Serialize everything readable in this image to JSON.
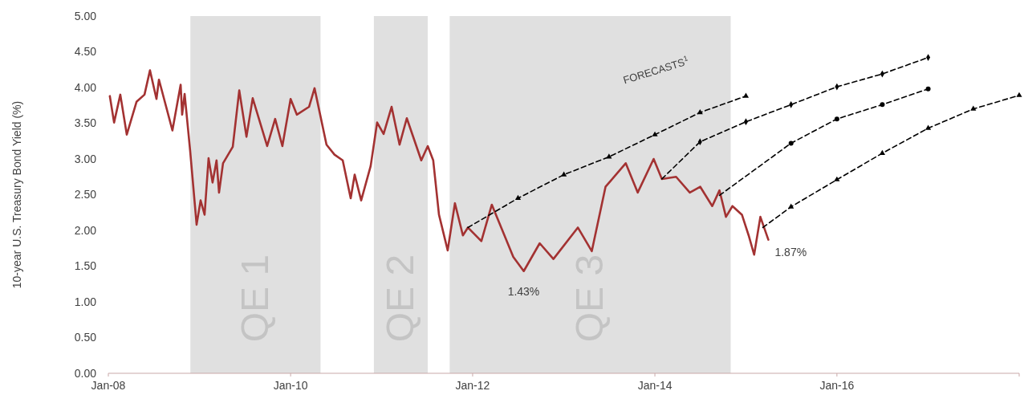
{
  "chart_data": {
    "type": "line",
    "ylabel": "10-year U.S. Treasury Bond Yield (%)",
    "xlim": [
      "2008-01-01",
      "2018-01-01"
    ],
    "xticks": [
      {
        "value": "2008-01-01",
        "label": "Jan-08"
      },
      {
        "value": "2010-01-01",
        "label": "Jan-10"
      },
      {
        "value": "2012-01-01",
        "label": "Jan-12"
      },
      {
        "value": "2014-01-01",
        "label": "Jan-14"
      },
      {
        "value": "2016-01-01",
        "label": "Jan-16"
      },
      {
        "value": "2018-01-01",
        "label": null
      }
    ],
    "ylim": [
      0,
      5
    ],
    "yticks": [
      {
        "value": 0,
        "label": "0.00"
      },
      {
        "value": 0.5,
        "label": "0.50"
      },
      {
        "value": 1,
        "label": "1.00"
      },
      {
        "value": 1.5,
        "label": "1.50"
      },
      {
        "value": 2,
        "label": "2.00"
      },
      {
        "value": 2.5,
        "label": "2.50"
      },
      {
        "value": 3,
        "label": "3.00"
      },
      {
        "value": 3.5,
        "label": "3.50"
      },
      {
        "value": 4,
        "label": "4.00"
      },
      {
        "value": 4.5,
        "label": "4.50"
      },
      {
        "value": 5,
        "label": "5.00"
      }
    ],
    "bands": [
      {
        "axis": "x",
        "from": "2008-11-25",
        "to": "2010-05-01",
        "label": "QE 1",
        "color": "#e0e0e0"
      },
      {
        "axis": "x",
        "from": "2010-12-01",
        "to": "2011-07-05",
        "label": "QE 2",
        "color": "#e0e0e0"
      },
      {
        "axis": "x",
        "from": "2011-10-01",
        "to": "2014-11-01",
        "label": "QE 3",
        "color": "#e0e0e0"
      }
    ],
    "annotations": [
      {
        "text": "1.43%",
        "x": "2012-07-24",
        "y": 1.43
      },
      {
        "text": "1.87%",
        "x": "2015-04-01",
        "y": 1.87
      },
      "FORECASTS$^{1}$"
    ],
    "series": [
      {
        "color": "#a33232",
        "line_style": "solid",
        "marker": "none",
        "x": [
          "2008-01-07",
          "2008-01-24",
          "2008-02-18",
          "2008-03-15",
          "2008-04-23",
          "2008-05-25",
          "2008-06-16",
          "2008-07-12",
          "2008-07-22",
          "2008-09-14",
          "2008-10-17",
          "2008-10-23",
          "2008-11-02",
          "2008-11-24",
          "2008-12-20",
          "2009-01-05",
          "2009-01-21",
          "2009-02-06",
          "2009-02-22",
          "2009-03-10",
          "2009-03-20",
          "2009-04-05",
          "2009-05-14",
          "2009-06-09",
          "2009-07-08",
          "2009-08-02",
          "2009-09-29",
          "2009-10-31",
          "2009-11-29",
          "2010-01-01",
          "2010-01-26",
          "2010-03-16",
          "2010-04-07",
          "2010-05-25",
          "2010-06-26",
          "2010-07-29",
          "2010-08-30",
          "2010-09-15",
          "2010-10-11",
          "2010-11-18",
          "2010-12-14",
          "2011-01-09",
          "2011-02-10",
          "2011-03-14",
          "2011-04-12",
          "2011-06-09",
          "2011-07-05",
          "2011-07-27",
          "2011-08-19",
          "2011-09-23",
          "2011-10-22",
          "2011-11-23",
          "2011-12-13",
          "2012-02-05",
          "2012-03-18",
          "2012-06-12",
          "2012-07-24",
          "2012-09-26",
          "2012-11-20",
          "2013-02-26",
          "2013-04-23",
          "2013-06-17",
          "2013-09-06",
          "2013-10-24",
          "2013-12-27",
          "2014-01-29",
          "2014-03-27",
          "2014-05-21",
          "2014-07-02",
          "2014-08-19",
          "2014-09-17",
          "2014-10-13",
          "2014-11-08",
          "2014-12-16",
          "2015-01-12",
          "2015-02-03",
          "2015-02-28",
          "2015-04-01"
        ],
        "values": [
          3.88,
          3.51,
          3.9,
          3.34,
          3.8,
          3.9,
          4.24,
          3.84,
          4.11,
          3.4,
          4.04,
          3.62,
          3.91,
          3.12,
          2.08,
          2.42,
          2.22,
          3.01,
          2.67,
          2.98,
          2.53,
          2.94,
          3.17,
          3.96,
          3.31,
          3.85,
          3.18,
          3.56,
          3.18,
          3.84,
          3.62,
          3.73,
          3.99,
          3.2,
          3.06,
          2.98,
          2.45,
          2.78,
          2.42,
          2.9,
          3.51,
          3.35,
          3.73,
          3.2,
          3.57,
          2.98,
          3.18,
          2.98,
          2.22,
          1.72,
          2.38,
          1.93,
          2.04,
          1.85,
          2.36,
          1.63,
          1.43,
          1.82,
          1.6,
          2.04,
          1.71,
          2.61,
          2.94,
          2.53,
          3.0,
          2.72,
          2.75,
          2.53,
          2.61,
          2.34,
          2.56,
          2.19,
          2.34,
          2.22,
          1.93,
          1.66,
          2.19,
          1.87
        ]
      },
      {
        "color": "#000000",
        "line_style": "dashed",
        "marker": "triangle",
        "x": [
          "2011-12-13",
          "2012-07-01",
          "2013-01-01",
          "2013-07-01",
          "2014-01-01",
          "2014-07-01",
          "2015-01-01"
        ],
        "values": [
          2.04,
          2.45,
          2.78,
          3.03,
          3.34,
          3.65,
          3.88
        ]
      },
      {
        "color": "#000000",
        "line_style": "dashed",
        "marker": "diamond",
        "x": [
          "2014-01-29",
          "2014-07-01",
          "2015-01-01",
          "2015-07-01",
          "2016-01-01",
          "2016-07-01",
          "2017-01-01"
        ],
        "values": [
          2.72,
          3.24,
          3.52,
          3.76,
          4.01,
          4.19,
          4.42
        ]
      },
      {
        "color": "#000000",
        "line_style": "dashed",
        "marker": "circle",
        "x": [
          "2014-09-17",
          "2015-07-01",
          "2016-01-01",
          "2016-07-01",
          "2017-01-01"
        ],
        "values": [
          2.49,
          3.22,
          3.56,
          3.76,
          3.98
        ]
      },
      {
        "color": "#000000",
        "line_style": "dashed",
        "marker": "triangle",
        "x": [
          "2015-03-10",
          "2015-07-01",
          "2016-01-01",
          "2016-07-01",
          "2017-01-01",
          "2017-07-01",
          "2018-01-01"
        ],
        "values": [
          2.04,
          2.33,
          2.71,
          3.08,
          3.43,
          3.7,
          3.89
        ]
      }
    ]
  }
}
